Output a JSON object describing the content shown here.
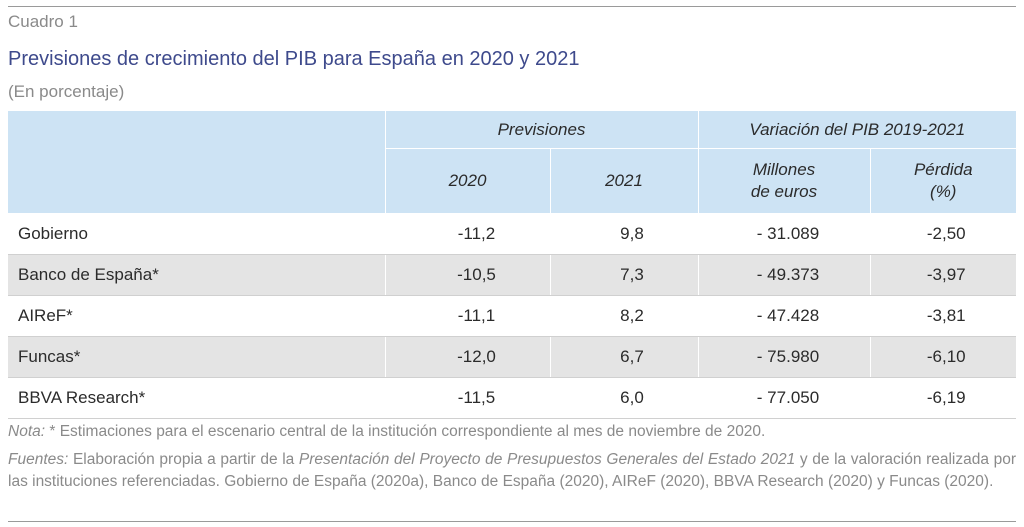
{
  "label": "Cuadro 1",
  "title": "Previsiones de crecimiento del PIB para España en 2020 y 2021",
  "subtitle": "(En porcentaje)",
  "table": {
    "group_headers": [
      "Previsiones",
      "Variación del PIB 2019-2021"
    ],
    "sub_headers": {
      "y2020": "2020",
      "y2021": "2021",
      "millones_line1": "Millones",
      "millones_line2": "de euros",
      "perdida_line1": "Pérdida",
      "perdida_line2": "(%)"
    },
    "rows": [
      {
        "name": "Gobierno",
        "y2020": "-11,2",
        "y2021": "9,8",
        "millones": "- 31.089",
        "perdida": "-2,50"
      },
      {
        "name": "Banco de España*",
        "y2020": "-10,5",
        "y2021": "7,3",
        "millones": "- 49.373",
        "perdida": "-3,97"
      },
      {
        "name": "AIReF*",
        "y2020": "-11,1",
        "y2021": "8,2",
        "millones": "- 47.428",
        "perdida": "-3,81"
      },
      {
        "name": "Funcas*",
        "y2020": "-12,0",
        "y2021": "6,7",
        "millones": "- 75.980",
        "perdida": "-6,10"
      },
      {
        "name": "BBVA Research*",
        "y2020": "-11,5",
        "y2021": "6,0",
        "millones": "- 77.050",
        "perdida": "-6,19"
      }
    ]
  },
  "note": {
    "label": "Nota:",
    "text": " * Estimaciones para el escenario central de la institución correspondiente al mes de noviembre de 2020."
  },
  "sources": {
    "label": "Fuentes:",
    "text1": " Elaboración propia a partir de la ",
    "doc_title": "Presentación del Proyecto de Presupuestos Generales del Estado 2021",
    "text2": " y de la valoración realizada por las instituciones referenciadas. Gobierno de España (2020a), Banco de España (2020), AIReF (2020), BBVA Research (2020) y Funcas (2020)."
  },
  "colors": {
    "title": "#3e4a8c",
    "header_bg": "#cde3f4",
    "shaded_row": "#e4e4e4",
    "muted_text": "#8a8a8a"
  }
}
